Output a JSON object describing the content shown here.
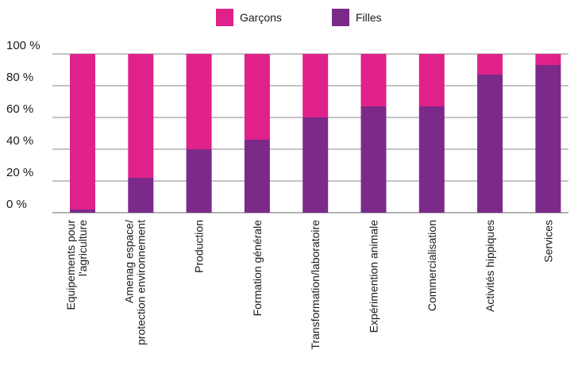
{
  "chart_data": {
    "type": "bar",
    "stacked": true,
    "percent": true,
    "categories": [
      [
        "Equipements pour",
        "l'agriculture"
      ],
      [
        "Amenag espace/",
        "protection environnement"
      ],
      [
        "Production"
      ],
      [
        "Formation générale"
      ],
      [
        "Transformation/laboratoire"
      ],
      [
        "Expérimention animale"
      ],
      [
        "Commercialisation"
      ],
      [
        "Activités hippiques"
      ],
      [
        "Services"
      ]
    ],
    "series": [
      {
        "name": "Filles",
        "color": "#7b2a8a",
        "values": [
          2,
          22,
          40,
          46,
          60,
          67,
          67,
          87,
          93
        ]
      },
      {
        "name": "Garçons",
        "color": "#e0218a",
        "values": [
          98,
          78,
          60,
          54,
          40,
          33,
          33,
          13,
          7
        ]
      }
    ],
    "legend": [
      "Garçons",
      "Filles"
    ],
    "legend_position": "top",
    "y_ticks": [
      "0 %",
      "20 %",
      "40 %",
      "60 %",
      "80 %",
      "100 %"
    ],
    "ylim": [
      0,
      100
    ],
    "grid": true
  }
}
